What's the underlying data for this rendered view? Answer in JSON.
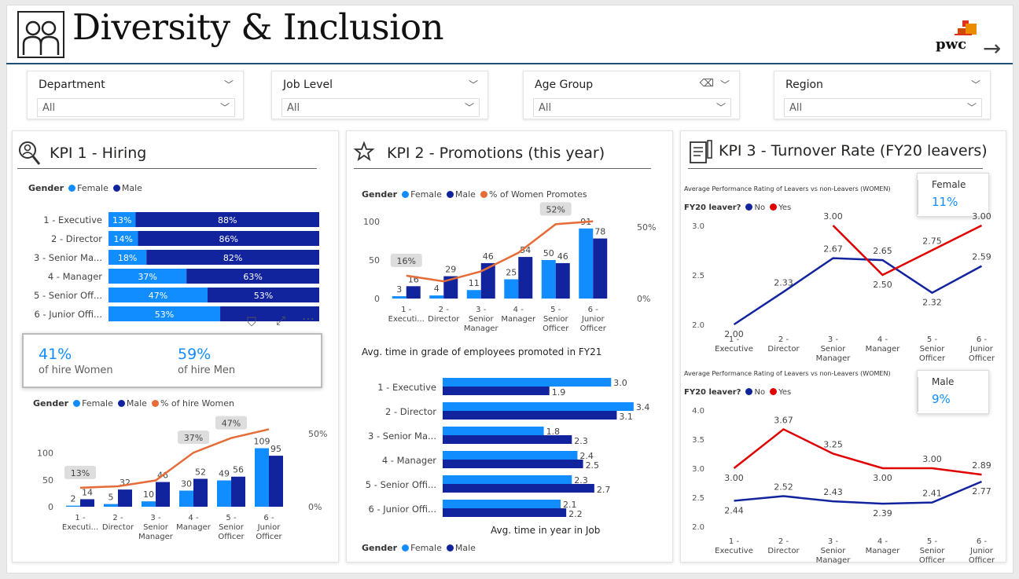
{
  "app_title": "Diversity & Inclusion",
  "logo_text": "pwc",
  "slicers": [
    {
      "label": "Department",
      "value": "All"
    },
    {
      "label": "Job Level",
      "value": "All"
    },
    {
      "label": "Age Group",
      "value": "All"
    },
    {
      "label": "Region",
      "value": "All"
    }
  ],
  "colors": {
    "female": "#118dff",
    "male": "#12239e",
    "women_line": "#e66c37",
    "no": "#12239e",
    "yes": "#e00000",
    "accent": "#1f4e79"
  },
  "kpi1": {
    "title": "KPI 1 - Hiring",
    "legend": {
      "label": "Gender",
      "female": "Female",
      "male": "Male"
    },
    "women_label": "41%",
    "women_sub": "of hire Women",
    "men_label": "59%",
    "men_sub": "of hire Men",
    "legend2": {
      "label": "Gender",
      "female": "Female",
      "male": "Male",
      "line": "% of hire Women"
    }
  },
  "kpi2": {
    "title": "KPI 2 - Promotions (this year)",
    "legend": {
      "label": "Gender",
      "female": "Female",
      "male": "Male",
      "line": "% of Women Promotes"
    },
    "time_title": "Avg. time in grade of employees promoted in FY21",
    "job_title": "Avg. time in year in Job",
    "legend2": {
      "label": "Gender",
      "female": "Female",
      "male": "Male"
    }
  },
  "kpi3": {
    "title": "KPI 3 - Turnover Rate (FY20 leavers)",
    "women_chart_title": "Average Performance Rating of Leavers vs non-Leavers (WOMEN)",
    "men_chart_title": "Average Performance Rating of Leavers vs non-Leavers (WOMEN)",
    "leaver_label": "FY20 leaver?",
    "no_label": "No",
    "yes_label": "Yes",
    "female_card": {
      "title": "Female",
      "value": "11%"
    },
    "male_card": {
      "title": "Male",
      "value": "9%"
    }
  },
  "chart_data": [
    {
      "type": "bar",
      "orientation": "horizontal-100%-stacked",
      "categories": [
        "1 - Executive",
        "2 - Director",
        "3 - Senior Ma...",
        "4 - Manager",
        "5 - Senior Off...",
        "6 - Junior Offi..."
      ],
      "series": [
        {
          "name": "Female",
          "values": [
            13,
            14,
            18,
            37,
            47,
            53
          ],
          "labels": [
            "13%",
            "14%",
            "18%",
            "37%",
            "47%",
            "53%"
          ]
        },
        {
          "name": "Male",
          "values": [
            88,
            86,
            82,
            63,
            53,
            47
          ],
          "labels": [
            "88%",
            "86%",
            "82%",
            "63%",
            "53%",
            ""
          ]
        }
      ]
    },
    {
      "type": "bar",
      "categories": [
        "1 - Executi...",
        "2 - Director",
        "3 - Senior Manager",
        "4 - Manager",
        "5 - Senior Officer",
        "6 - Junior Officer"
      ],
      "series": [
        {
          "name": "Female",
          "values": [
            2,
            5,
            10,
            30,
            49,
            109
          ]
        },
        {
          "name": "Male",
          "values": [
            14,
            32,
            46,
            52,
            56,
            95
          ]
        },
        {
          "name": "% of hire Women",
          "type": "line",
          "values": [
            13,
            14,
            18,
            37,
            47,
            53
          ]
        }
      ],
      "line_labels": [
        "13%",
        "",
        "",
        "37%",
        "47%",
        ""
      ],
      "y_ticks": [
        "0",
        "50",
        "100"
      ],
      "y2_ticks": [
        "0%",
        "50%"
      ],
      "ylim": [
        0,
        120
      ]
    },
    {
      "type": "bar",
      "categories": [
        "1 - Executi...",
        "2 - Director",
        "3 - Senior Manager",
        "4 - Manager",
        "5 - Senior Officer",
        "6 - Junior Officer"
      ],
      "series": [
        {
          "name": "Female",
          "values": [
            3,
            4,
            11,
            25,
            50,
            91
          ]
        },
        {
          "name": "Male",
          "values": [
            16,
            29,
            46,
            54,
            46,
            78
          ]
        },
        {
          "name": "% of Women Promotes",
          "type": "line",
          "values": [
            16,
            12,
            19,
            32,
            52,
            54
          ]
        }
      ],
      "line_labels": [
        "16%",
        "",
        "",
        "",
        "52%",
        ""
      ],
      "y_ticks": [
        "0",
        "50",
        "100"
      ],
      "y2_ticks": [
        "0%",
        "50%"
      ],
      "ylim": [
        0,
        100
      ]
    },
    {
      "type": "bar",
      "orientation": "horizontal",
      "categories": [
        "1 - Executive",
        "2 - Director",
        "3 - Senior Ma...",
        "4 - Manager",
        "5 - Senior Offi...",
        "6 - Junior Offi..."
      ],
      "series": [
        {
          "name": "Female",
          "values": [
            3.0,
            3.4,
            1.8,
            2.4,
            2.3,
            2.1
          ]
        },
        {
          "name": "Male",
          "values": [
            1.9,
            3.1,
            2.3,
            2.5,
            2.7,
            2.2
          ]
        }
      ],
      "xlim": [
        0,
        3.5
      ]
    },
    {
      "type": "line",
      "categories": [
        "1 - Executive",
        "2 - Director",
        "3 - Senior Manager",
        "4 - Manager",
        "5 - Senior Officer",
        "6 - Junior Officer"
      ],
      "series": [
        {
          "name": "No",
          "values": [
            2.0,
            2.33,
            2.67,
            2.65,
            2.32,
            2.59
          ]
        },
        {
          "name": "Yes",
          "values": [
            null,
            null,
            3.0,
            2.5,
            2.75,
            3.0
          ]
        }
      ],
      "y_ticks": [
        "2.0",
        "2.5",
        "3.0"
      ],
      "ylim": [
        2.0,
        3.0
      ]
    },
    {
      "type": "line",
      "categories": [
        "1 - Executive",
        "2 - Director",
        "3 - Senior Manager",
        "4 - Manager",
        "5 - Senior Officer",
        "6 - Junior Officer"
      ],
      "series": [
        {
          "name": "No",
          "values": [
            2.44,
            2.52,
            2.43,
            2.39,
            2.41,
            2.77
          ]
        },
        {
          "name": "Yes",
          "values": [
            3.0,
            3.67,
            3.25,
            3.0,
            3.0,
            2.89
          ]
        }
      ],
      "y_ticks": [
        "2.0",
        "2.5",
        "3.0",
        "3.5",
        "4.0"
      ],
      "ylim": [
        2.0,
        4.0
      ]
    }
  ]
}
